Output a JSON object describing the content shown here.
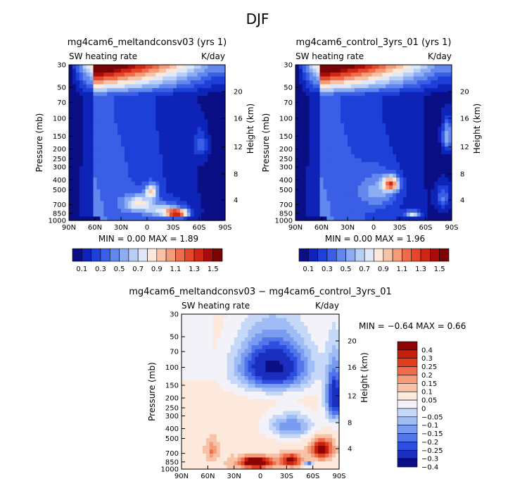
{
  "supertitle": "DJF",
  "palette_main": [
    "#0a0f85",
    "#0e24b8",
    "#1d40d8",
    "#3a5fe6",
    "#6288ee",
    "#8dadf3",
    "#b7cff7",
    "#dfe8f8",
    "#fde8dc",
    "#f8c2a6",
    "#f49c7a",
    "#ee6c4b",
    "#e5472a",
    "#d02614",
    "#a80c0a",
    "#7a0303"
  ],
  "palette_diff": [
    "#0a0f85",
    "#1a2ec0",
    "#2e4ee0",
    "#5276ea",
    "#7a9cf0",
    "#a0bcf4",
    "#c6d8f8",
    "#f2f2f8",
    "#fde8dc",
    "#f8c2a6",
    "#f49c7a",
    "#ee6c4b",
    "#e0401f",
    "#c4200d",
    "#8e0303"
  ],
  "chart_data": [
    {
      "type": "heatmap",
      "title": "mg4cam6_meltandconsv03 (yrs 1)",
      "left_string": "SW heating rate",
      "right_string": "K/day",
      "xlabel": "",
      "ylabel": "Pressure (mb)",
      "y2label": "Height (km)",
      "x_ticks": [
        "90N",
        "60N",
        "30N",
        "0",
        "30S",
        "60S",
        "90S"
      ],
      "y_ticks": [
        "30",
        "50",
        "70",
        "100",
        "150",
        "200",
        "250",
        "300",
        "400",
        "500",
        "700",
        "850",
        "1000"
      ],
      "y2_ticks": [
        "20",
        "16",
        "12",
        "8",
        "4"
      ],
      "min_max_text": "MIN =    0.00   MAX =    1.89",
      "min": 0.0,
      "max": 1.89,
      "colorbar_labels": [
        "0.1",
        "0.3",
        "0.5",
        "0.7",
        "0.9",
        "1.1",
        "1.3",
        "1.5"
      ],
      "blobs": [
        {
          "lat": -5,
          "p": 520,
          "amp": 0.7,
          "slat": 7,
          "sp": 80
        },
        {
          "lat": 10,
          "p": 680,
          "amp": 0.55,
          "slat": 16,
          "sp": 120
        },
        {
          "lat": -35,
          "p": 850,
          "amp": 1.15,
          "slat": 12,
          "sp": 70
        },
        {
          "lat": -20,
          "p": 800,
          "amp": 0.5,
          "slat": 22,
          "sp": 130
        },
        {
          "lat": -62,
          "p": 180,
          "amp": 0.25,
          "slat": 8,
          "sp": 60
        }
      ]
    },
    {
      "type": "heatmap",
      "title": "mg4cam6_control_3yrs_01 (yrs 1)",
      "left_string": "SW heating rate",
      "right_string": "K/day",
      "xlabel": "",
      "ylabel": "Pressure (mb)",
      "y2label": "Height (km)",
      "x_ticks": [
        "90N",
        "60N",
        "30N",
        "0",
        "30S",
        "60S",
        "90S"
      ],
      "y_ticks": [
        "30",
        "50",
        "70",
        "100",
        "150",
        "200",
        "250",
        "300",
        "400",
        "500",
        "700",
        "850",
        "1000"
      ],
      "y2_ticks": [
        "20",
        "16",
        "12",
        "8",
        "4"
      ],
      "min_max_text": "MIN =    0.00   MAX =    1.96",
      "min": 0.0,
      "max": 1.96,
      "colorbar_labels": [
        "0.1",
        "0.3",
        "0.5",
        "0.7",
        "0.9",
        "1.1",
        "1.3",
        "1.5"
      ],
      "blobs": [
        {
          "lat": -20,
          "p": 440,
          "amp": 0.95,
          "slat": 9,
          "sp": 70
        },
        {
          "lat": -5,
          "p": 520,
          "amp": 0.3,
          "slat": 22,
          "sp": 200
        },
        {
          "lat": -45,
          "p": 860,
          "amp": 0.7,
          "slat": 8,
          "sp": 55
        },
        {
          "lat": -85,
          "p": 150,
          "amp": 0.55,
          "slat": 6,
          "sp": 50
        },
        {
          "lat": -80,
          "p": 600,
          "amp": 0.35,
          "slat": 8,
          "sp": 160
        }
      ]
    },
    {
      "type": "heatmap",
      "title": "mg4cam6_meltandconsv03 − mg4cam6_control_3yrs_01",
      "left_string": "SW heating rate",
      "right_string": "K/day",
      "xlabel": "",
      "ylabel": "Pressure (mb)",
      "y2label": "Height (km)",
      "x_ticks": [
        "90N",
        "60N",
        "30N",
        "0",
        "30S",
        "60S",
        "90S"
      ],
      "y_ticks": [
        "30",
        "50",
        "70",
        "100",
        "150",
        "200",
        "250",
        "300",
        "400",
        "500",
        "700",
        "850",
        "1000"
      ],
      "y2_ticks": [
        "20",
        "16",
        "12",
        "8",
        "4"
      ],
      "min_max_text": "MIN =   −0.64   MAX =    0.66",
      "min": -0.64,
      "max": 0.66,
      "colorbar_labels": [
        "0.4",
        "0.3",
        "0.25",
        "0.2",
        "0.15",
        "0.1",
        "0.05",
        "0",
        "−0.05",
        "−0.1",
        "−0.15",
        "−0.2",
        "−0.25",
        "−0.3",
        "−0.4"
      ],
      "blobs": [
        {
          "lat": 5,
          "p": 860,
          "amp": 0.45,
          "slat": 18,
          "sp": 110
        },
        {
          "lat": -35,
          "p": 820,
          "amp": 0.3,
          "slat": 12,
          "sp": 120
        },
        {
          "lat": -70,
          "p": 640,
          "amp": 0.35,
          "slat": 12,
          "sp": 140
        },
        {
          "lat": 55,
          "p": 650,
          "amp": 0.12,
          "slat": 6,
          "sp": 120
        },
        {
          "lat": -15,
          "p": 100,
          "amp": -0.45,
          "slat": 40,
          "sp": 60
        },
        {
          "lat": -35,
          "p": 380,
          "amp": -0.22,
          "slat": 25,
          "sp": 100
        },
        {
          "lat": -55,
          "p": 900,
          "amp": -0.35,
          "slat": 5,
          "sp": 40
        },
        {
          "lat": -85,
          "p": 200,
          "amp": -0.4,
          "slat": 10,
          "sp": 120
        }
      ]
    }
  ]
}
